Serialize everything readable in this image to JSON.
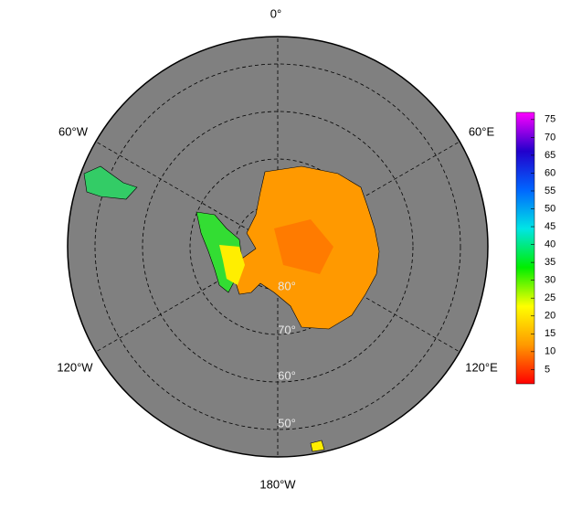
{
  "map": {
    "longitude_labels": [
      "0°",
      "60°E",
      "120°E",
      "180°W",
      "120°W",
      "60°W"
    ],
    "latitude_labels": [
      "80°",
      "70°",
      "60°",
      "50°"
    ],
    "colorbar": {
      "range": [
        1,
        77
      ],
      "ticks": [
        5,
        10,
        15,
        20,
        25,
        30,
        35,
        40,
        45,
        50,
        55,
        60,
        65,
        70,
        75
      ],
      "colors": [
        "#ff0000",
        "#ff9900",
        "#ffff00",
        "#00ee00",
        "#00e5e5",
        "#0066ff",
        "#2200cc",
        "#ff00ff"
      ]
    }
  }
}
